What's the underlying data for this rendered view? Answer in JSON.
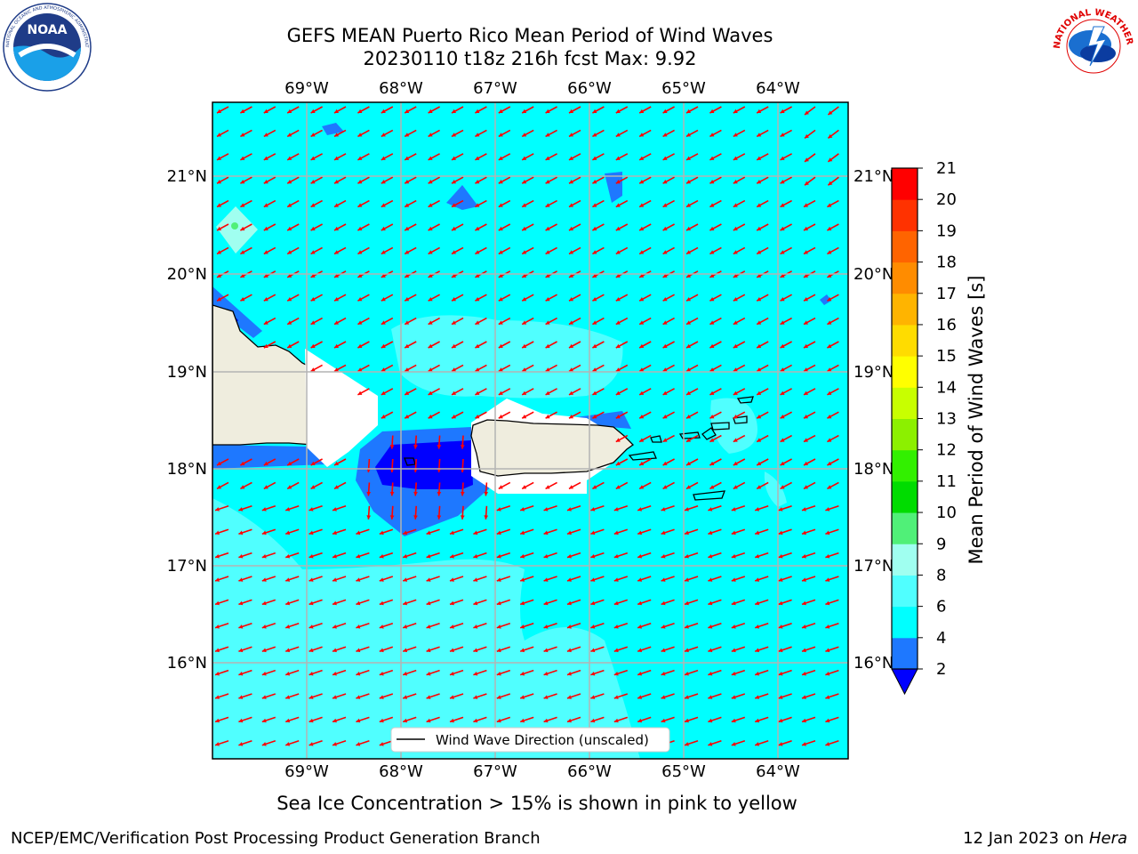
{
  "header": {
    "title_line1": "GEFS MEAN Puerto Rico Mean Period of Wind Waves",
    "title_line2": "20230110 t18z 216h fcst   Max: 9.92"
  },
  "logos": {
    "left": {
      "icon": "noaa-logo",
      "text": "NOAA",
      "ring_text": "NATIONAL OCEANIC AND ATMOSPHERIC ADMINISTRATION · U.S. DEPARTMENT OF COMMERCE"
    },
    "right": {
      "icon": "nws-logo",
      "ring_text": "NATIONAL WEATHER SERVICE"
    }
  },
  "map": {
    "lon_labels": [
      "69°W",
      "68°W",
      "67°W",
      "66°W",
      "65°W",
      "64°W"
    ],
    "lat_labels": [
      "21°N",
      "20°N",
      "19°N",
      "18°N",
      "17°N",
      "16°N"
    ],
    "legend_label": "Wind Wave Direction (unscaled)",
    "arrow_color": "#ff0000",
    "land_color": "#efedde",
    "colors": {
      "lt2": "#0000ff",
      "c2_4": "#1e78ff",
      "c4_6": "#00ffff",
      "c6_8": "#50ffff",
      "c8_9": "#a0fff0"
    }
  },
  "colorbar": {
    "title": "Mean Period of Wind Waves [s]",
    "ticks": [
      "21",
      "20",
      "19",
      "18",
      "17",
      "16",
      "15",
      "14",
      "13",
      "12",
      "11",
      "10",
      "9",
      "8",
      "6",
      "4",
      "2"
    ],
    "colors": [
      "#0000ff",
      "#1e78ff",
      "#00ffff",
      "#50ffff",
      "#a0fff0",
      "#50f078",
      "#00dc00",
      "#32f000",
      "#8cf000",
      "#c8ff00",
      "#ffff00",
      "#ffdc00",
      "#ffb400",
      "#ff8c00",
      "#ff6400",
      "#ff3200",
      "#ff0000"
    ]
  },
  "notes": {
    "sea_ice": "Sea Ice Concentration > 15% is shown in pink to yellow"
  },
  "footer": {
    "left": "NCEP/EMC/Verification Post Processing Product Generation Branch",
    "date": "12 Jan 2023 on ",
    "host": "Hera"
  }
}
